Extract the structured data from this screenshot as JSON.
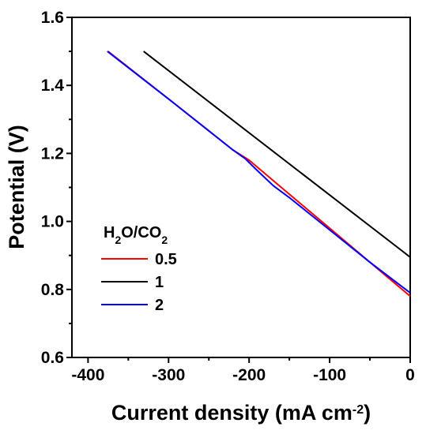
{
  "chart_data": {
    "type": "line",
    "xlabel": {
      "main": "Current density (mA cm",
      "sup": "-2",
      "end": ")"
    },
    "ylabel": "Potential (V)",
    "xlim": [
      -420,
      0
    ],
    "ylim": [
      0.6,
      1.6
    ],
    "xticks": [
      -400,
      -300,
      -200,
      -100,
      0
    ],
    "xtick_labels": [
      "-400",
      "-300",
      "-200",
      "-100",
      "0"
    ],
    "yticks": [
      0.6,
      0.8,
      1.0,
      1.2,
      1.4,
      1.6
    ],
    "ytick_labels": [
      "0.6",
      "0.8",
      "1.0",
      "1.2",
      "1.4",
      "1.6"
    ],
    "legend": {
      "title": {
        "base1": "H",
        "sub1": "2",
        "base2": "O/CO",
        "sub2": "2"
      },
      "placement": "left"
    },
    "series": [
      {
        "name": "0.5",
        "color": "#ff0000",
        "x": [
          -375,
          -300,
          -220,
          -200,
          -150,
          -100,
          -50,
          0
        ],
        "y": [
          1.5,
          1.36,
          1.21,
          1.18,
          1.08,
          0.98,
          0.88,
          0.78
        ]
      },
      {
        "name": "1",
        "color": "#000000",
        "x": [
          -331,
          0
        ],
        "y": [
          1.5,
          0.895
        ]
      },
      {
        "name": "2",
        "color": "#0000ff",
        "x": [
          -376,
          -300,
          -220,
          -205,
          -190,
          -170,
          -150,
          -100,
          -50,
          0
        ],
        "y": [
          1.5,
          1.36,
          1.21,
          1.185,
          1.15,
          1.105,
          1.07,
          0.975,
          0.88,
          0.79
        ]
      }
    ]
  }
}
